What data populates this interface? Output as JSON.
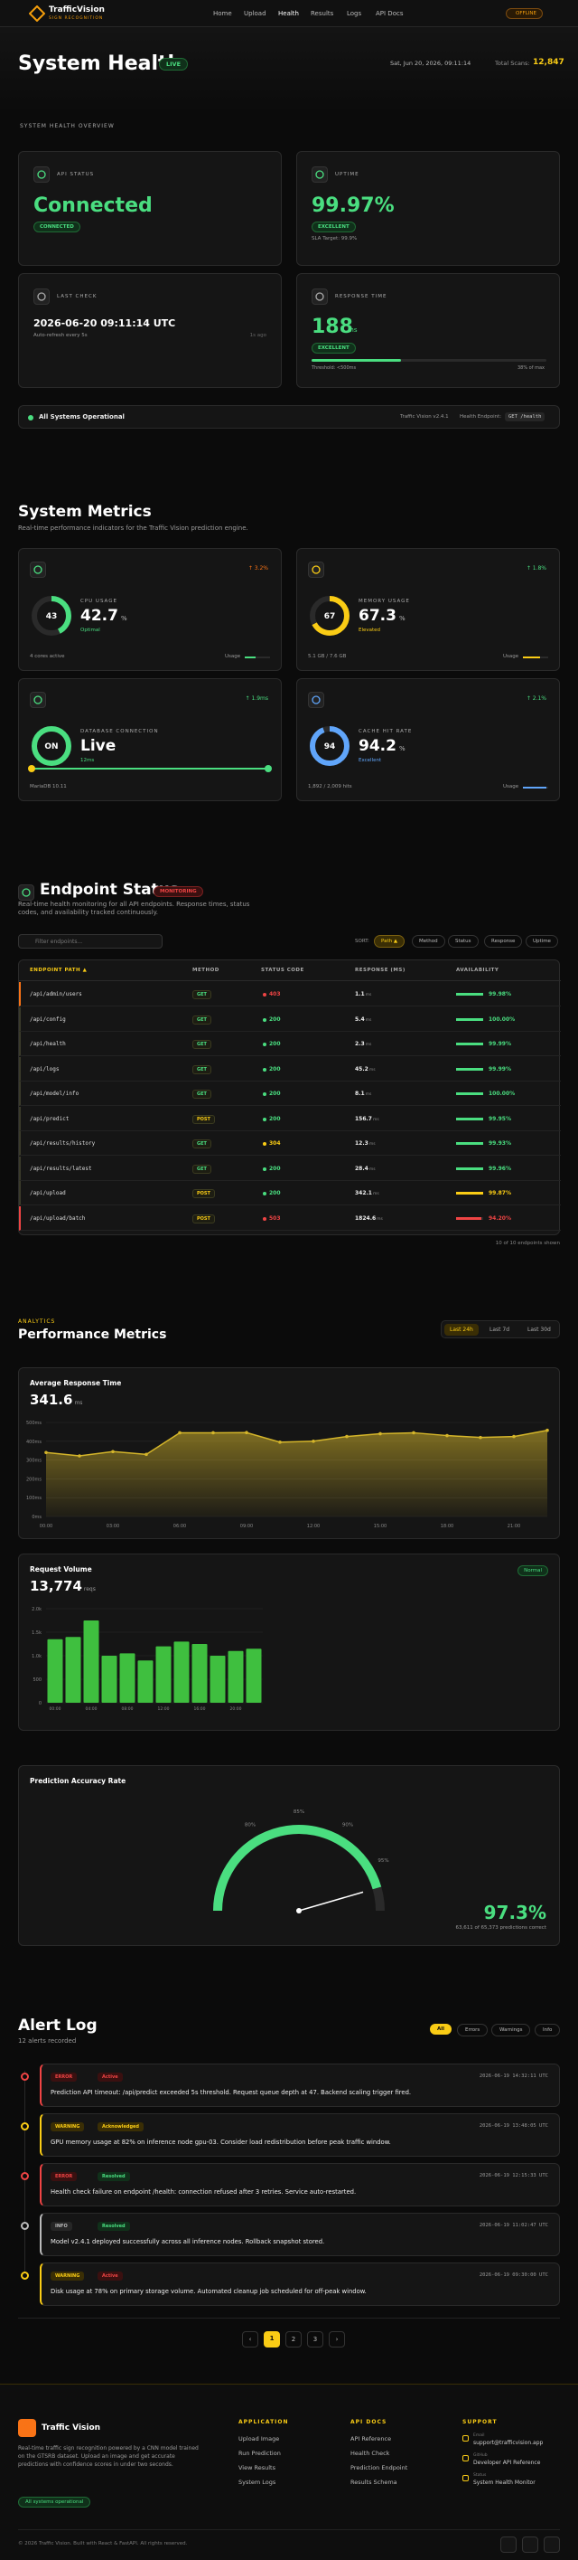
{
  "nav": {
    "brand": "TrafficVision",
    "tagline": "SIGN RECOGNITION",
    "links": [
      "Home",
      "Upload",
      "Health",
      "Results",
      "Logs",
      "API Docs"
    ],
    "status": "OFFLINE"
  },
  "hero": {
    "title": "System Health",
    "live": "LIVE",
    "datetime": "Sat, Jun 20, 2026, 09:11:14",
    "scans_label": "Total Scans:",
    "scans": "12,847"
  },
  "overview": {
    "label": "SYSTEM HEALTH OVERVIEW",
    "api": {
      "label": "API STATUS",
      "value": "Connected",
      "badge": "CONNECTED"
    },
    "uptime": {
      "label": "UPTIME",
      "value": "99.97%",
      "badge": "EXCELLENT",
      "note": "SLA Target: 99.9%"
    },
    "last_check": {
      "label": "LAST CHECK",
      "value": "2026-06-20 09:11:14 UTC",
      "note": "Auto-refresh every 5s",
      "ago": "1s ago"
    },
    "response": {
      "label": "RESPONSE TIME",
      "value": "188",
      "unit": "ms",
      "badge": "EXCELLENT",
      "bar": 38,
      "threshold": "Threshold: <500ms",
      "bar_label": "38% of max"
    }
  },
  "status_bar": {
    "text": "All Systems Operational",
    "version": "Traffic Vision v2.4.1",
    "endpoint_label": "Health Endpoint:",
    "endpoint": "GET /health"
  },
  "metrics": {
    "title": "System Metrics",
    "subtitle": "Real-time performance indicators for the Traffic Vision prediction engine.",
    "cards": [
      {
        "label": "CPU USAGE",
        "ring": 42.7,
        "ring_label": "43",
        "value": "42.7",
        "unit": "%",
        "state": "Optimal",
        "trend": "↑ 3.2%",
        "foot": "4 cores active",
        "usage": "Usage",
        "color": "#4ade80",
        "trend_color": "#f97316"
      },
      {
        "label": "MEMORY USAGE",
        "ring": 67.3,
        "ring_label": "67",
        "value": "67.3",
        "unit": "%",
        "state": "Elevated",
        "trend": "↑ 1.8%",
        "foot": "5.1 GB / 7.6 GB",
        "usage": "Usage",
        "color": "#facc15",
        "trend_color": "#4ade80"
      },
      {
        "label": "DATABASE CONNECTION",
        "ring": 100,
        "ring_label": "ON",
        "value": "Live",
        "unit": "",
        "state": "12ms",
        "trend": "↑ 1.9ms",
        "foot": "MariaDB 10.11",
        "usage": "",
        "color": "#4ade80",
        "trend_color": "#4ade80"
      },
      {
        "label": "CACHE HIT RATE",
        "ring": 94.2,
        "ring_label": "94",
        "value": "94.2",
        "unit": "%",
        "state": "Excellent",
        "trend": "↑ 2.1%",
        "foot": "1,892 / 2,009 hits",
        "usage": "Usage",
        "color": "#60a5fa",
        "trend_color": "#4ade80"
      }
    ]
  },
  "endpoints": {
    "title": "Endpoint Status",
    "badge": "MONITORING",
    "subtitle": "Real-time health monitoring for all API endpoints. Response times, status codes, and availability tracked continuously.",
    "search": "Filter endpoints...",
    "sort_label": "SORT:",
    "sorts": [
      "Path ▲",
      "Method",
      "Status",
      "Response",
      "Uptime"
    ],
    "columns": [
      "ENDPOINT PATH ▲",
      "METHOD",
      "STATUS CODE",
      "RESPONSE (MS)",
      "AVAILABILITY"
    ],
    "unit": "ms",
    "rows": [
      {
        "path": "/api/admin/users",
        "method": "GET",
        "status": 403,
        "response": "1.1",
        "availability": 99.98,
        "availability_label": "99.98%"
      },
      {
        "path": "/api/config",
        "method": "GET",
        "status": 200,
        "response": "5.4",
        "availability": 100,
        "availability_label": "100.00%"
      },
      {
        "path": "/api/health",
        "method": "GET",
        "status": 200,
        "response": "2.3",
        "availability": 99.99,
        "availability_label": "99.99%"
      },
      {
        "path": "/api/logs",
        "method": "GET",
        "status": 200,
        "response": "45.2",
        "availability": 99.99,
        "availability_label": "99.99%"
      },
      {
        "path": "/api/model/info",
        "method": "GET",
        "status": 200,
        "response": "8.1",
        "availability": 100,
        "availability_label": "100.00%"
      },
      {
        "path": "/api/predict",
        "method": "POST",
        "status": 200,
        "response": "156.7",
        "availability": 99.95,
        "availability_label": "99.95%"
      },
      {
        "path": "/api/results/history",
        "method": "GET",
        "status": 304,
        "response": "12.3",
        "availability": 99.93,
        "availability_label": "99.93%"
      },
      {
        "path": "/api/results/latest",
        "method": "GET",
        "status": 200,
        "response": "28.4",
        "availability": 99.96,
        "availability_label": "99.96%"
      },
      {
        "path": "/api/upload",
        "method": "POST",
        "status": 200,
        "response": "342.1",
        "availability": 99.87,
        "availability_label": "99.87%"
      },
      {
        "path": "/api/upload/batch",
        "method": "POST",
        "status": 503,
        "response": "1824.6",
        "availability": 94.2,
        "availability_label": "94.20%"
      }
    ],
    "footnote": "10 of 10 endpoints shown"
  },
  "analytics": {
    "label": "ANALYTICS",
    "title": "Performance Metrics",
    "ranges": [
      "Last 24h",
      "Last 7d",
      "Last 30d"
    ]
  },
  "chart_data": [
    {
      "type": "line",
      "title": "Average Response Time",
      "value": "341.6",
      "unit": "ms",
      "color": "#d4b52a",
      "categories": [
        "00:00",
        null,
        "03:00",
        null,
        "06:00",
        null,
        "09:00",
        null,
        "12:00",
        null,
        "15:00",
        null,
        "18:00",
        null,
        "21:00",
        null
      ],
      "values": [
        340,
        322,
        345,
        330,
        445,
        445,
        446,
        395,
        400,
        425,
        440,
        445,
        430,
        420,
        425,
        458
      ],
      "ylim": [
        0,
        500
      ],
      "yticks": [
        {
          "value": 0,
          "label": "0ms"
        },
        {
          "value": 100,
          "label": "100ms"
        },
        {
          "value": 200,
          "label": "200ms"
        },
        {
          "value": 300,
          "label": "300ms"
        },
        {
          "value": 400,
          "label": "400ms"
        },
        {
          "value": 500,
          "label": "500ms"
        }
      ],
      "grid": true
    },
    {
      "type": "bar",
      "title": "Request Volume",
      "value": "13,774",
      "unit": "reqs",
      "badge": "Normal",
      "color": "#3fbf3f",
      "categories": [
        "00:00",
        null,
        "04:00",
        null,
        "08:00",
        null,
        "12:00",
        null,
        "16:00",
        null,
        "20:00",
        null
      ],
      "values": [
        1350,
        1400,
        1750,
        1000,
        1050,
        900,
        1200,
        1300,
        1250,
        1000,
        1100,
        1150
      ],
      "ylim": [
        0,
        2000
      ],
      "yticks": [
        0,
        500,
        {
          "value": 1000,
          "label": "1.0k"
        },
        {
          "value": 1500,
          "label": "1.5k"
        },
        {
          "value": 2000,
          "label": "2.0k"
        }
      ],
      "grid": true
    },
    {
      "type": "gauge",
      "title": "Prediction Accuracy Rate",
      "value": 97.3,
      "value_label": "97.3%",
      "caption": "63,611 of 65,373 predictions correct",
      "color": "#4ade80",
      "ylim": [
        70,
        100
      ],
      "yticks": [
        {
          "value": 80,
          "label": "80%"
        },
        {
          "value": 85,
          "label": "85%"
        },
        {
          "value": 90,
          "label": "90%"
        },
        {
          "value": 95,
          "label": "95%"
        }
      ]
    }
  ],
  "alerts": {
    "title": "Alert Log",
    "subtitle": "12 alerts recorded",
    "filters": [
      "All",
      "Errors",
      "Warnings",
      "Info"
    ],
    "items": [
      {
        "level": "ERROR",
        "state": "Active",
        "time": "2026-06-19 14:32:11 UTC",
        "message": "Prediction API timeout: /api/predict exceeded 5s threshold. Request queue depth at 47. Backend scaling trigger fired."
      },
      {
        "level": "WARNING",
        "state": "Acknowledged",
        "time": "2026-06-19 13:48:05 UTC",
        "message": "GPU memory usage at 82% on inference node gpu-03. Consider load redistribution before peak traffic window."
      },
      {
        "level": "ERROR",
        "state": "Resolved",
        "time": "2026-06-19 12:15:33 UTC",
        "message": "Health check failure on endpoint /health: connection refused after 3 retries. Service auto-restarted."
      },
      {
        "level": "INFO",
        "state": "Resolved",
        "time": "2026-06-19 11:02:47 UTC",
        "message": "Model v2.4.1 deployed successfully across all inference nodes. Rollback snapshot stored."
      },
      {
        "level": "WARNING",
        "state": "Active",
        "time": "2026-06-19 09:30:00 UTC",
        "message": "Disk usage at 78% on primary storage volume. Automated cleanup job scheduled for off-peak window."
      }
    ],
    "pages": [
      "‹",
      "1",
      "2",
      "3",
      "›"
    ]
  },
  "footer": {
    "brand": "Traffic Vision",
    "description": "Real-time traffic sign recognition powered by a CNN model trained on the GTSRB dataset. Upload an image and get accurate predictions with confidence scores in under two seconds.",
    "badge": "All systems operational",
    "columns": [
      {
        "title": "APPLICATION",
        "links": [
          "Upload Image",
          "Run Prediction",
          "View Results",
          "System Logs"
        ]
      },
      {
        "title": "API DOCS",
        "links": [
          "API Reference",
          "Health Check",
          "Prediction Endpoint",
          "Results Schema"
        ]
      }
    ],
    "support": {
      "title": "SUPPORT",
      "items": [
        {
          "label": "Email",
          "text": "support@trafficvision.app"
        },
        {
          "label": "GitHub",
          "text": "Developer API Reference"
        },
        {
          "label": "Status",
          "text": "System Health Monitor"
        }
      ]
    },
    "copyright": "© 2026 Traffic Vision. Built with React & FastAPI. All rights reserved."
  }
}
